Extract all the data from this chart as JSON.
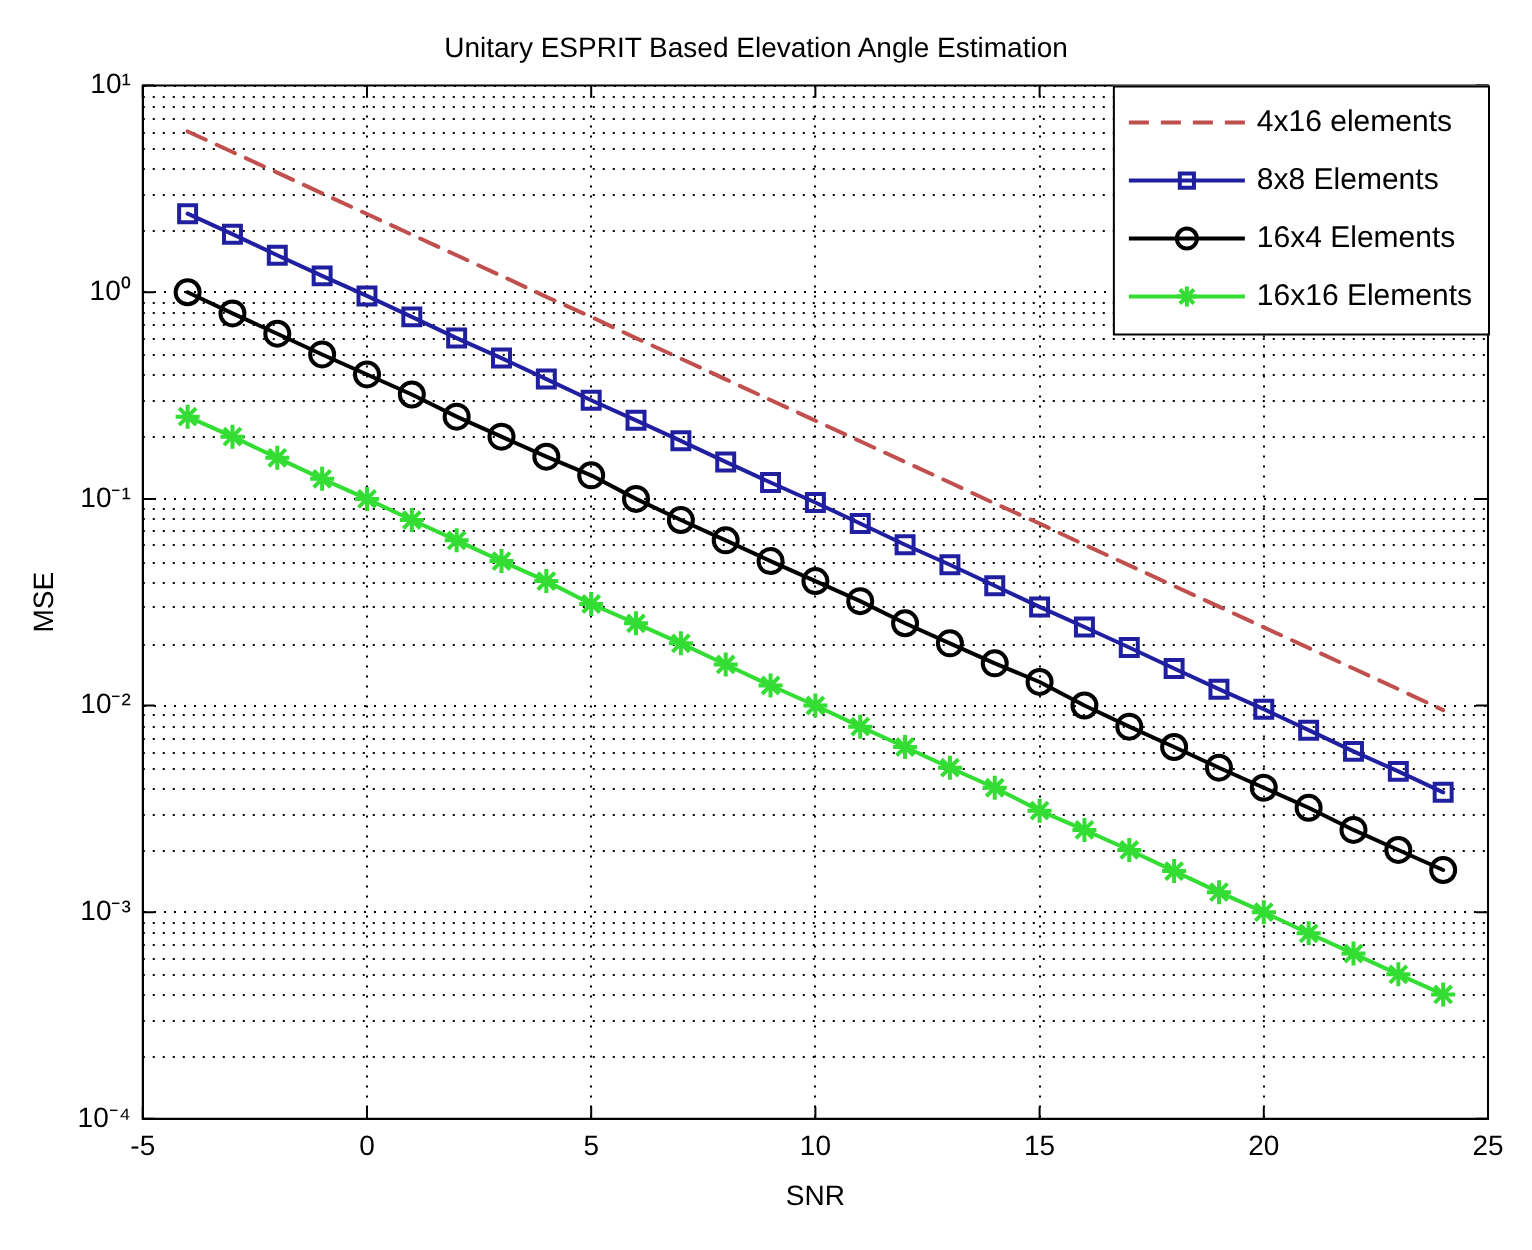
{
  "chart_data": {
    "type": "line",
    "title": "Unitary ESPRIT Based Elevation Angle Estimation",
    "xlabel": "SNR",
    "ylabel": "MSE",
    "x": [
      -4,
      -3,
      -2,
      -1,
      0,
      1,
      2,
      3,
      4,
      5,
      6,
      7,
      8,
      9,
      10,
      11,
      12,
      13,
      14,
      15,
      16,
      17,
      18,
      19,
      20,
      21,
      22,
      23,
      24
    ],
    "series": [
      {
        "name": "4x16 elements",
        "color": "#c0504d",
        "marker": "none",
        "line_style": "dashed",
        "values": [
          6,
          4.77,
          3.79,
          3.01,
          2.39,
          1.9,
          1.51,
          1.2,
          0.95,
          0.76,
          0.6,
          0.477,
          0.379,
          0.301,
          0.239,
          0.19,
          0.151,
          0.12,
          0.095,
          0.076,
          0.06,
          0.0477,
          0.0379,
          0.0301,
          0.0239,
          0.019,
          0.0151,
          0.012,
          0.0095
        ]
      },
      {
        "name": "8x8 Elements",
        "color": "#1f1fa0",
        "marker": "square",
        "line_style": "solid",
        "values": [
          2.4,
          1.91,
          1.51,
          1.2,
          0.96,
          0.76,
          0.6,
          0.48,
          0.38,
          0.3,
          0.24,
          0.191,
          0.151,
          0.12,
          0.096,
          0.076,
          0.06,
          0.048,
          0.038,
          0.03,
          0.024,
          0.0191,
          0.0151,
          0.012,
          0.0096,
          0.0076,
          0.006,
          0.0048,
          0.0038
        ]
      },
      {
        "name": "16x4 Elements",
        "color": "#000000",
        "marker": "circle",
        "line_style": "solid",
        "values": [
          1,
          0.79,
          0.63,
          0.5,
          0.4,
          0.32,
          0.25,
          0.2,
          0.16,
          0.13,
          0.1,
          0.079,
          0.063,
          0.05,
          0.04,
          0.032,
          0.025,
          0.02,
          0.016,
          0.013,
          0.01,
          0.0079,
          0.0063,
          0.005,
          0.004,
          0.0032,
          0.0025,
          0.002,
          0.0016
        ]
      },
      {
        "name": "16x16 Elements",
        "color": "#33dd33",
        "marker": "cross",
        "line_style": "solid",
        "values": [
          0.25,
          0.2,
          0.158,
          0.125,
          0.1,
          0.079,
          0.063,
          0.05,
          0.04,
          0.031,
          0.025,
          0.02,
          0.0158,
          0.0125,
          0.01,
          0.0079,
          0.0063,
          0.005,
          0.004,
          0.0031,
          0.0025,
          0.002,
          0.00158,
          0.00125,
          0.001,
          0.00079,
          0.00063,
          0.0005,
          0.0004
        ]
      }
    ],
    "xlim": [
      -5,
      25
    ],
    "xticks": [
      -5,
      0,
      5,
      10,
      15,
      20,
      25
    ],
    "ylim": [
      0.0001,
      10
    ],
    "yticks": [
      {
        "value": 0.0001,
        "label": "10⁻⁴"
      },
      {
        "value": 0.001,
        "label": "10⁻³"
      },
      {
        "value": 0.01,
        "label": "10⁻²"
      },
      {
        "value": 0.1,
        "label": "10⁻¹"
      },
      {
        "value": 1,
        "label": "10⁰"
      },
      {
        "value": 10,
        "label": "10¹"
      }
    ],
    "log": "y",
    "grid": true,
    "legend": "top right"
  }
}
